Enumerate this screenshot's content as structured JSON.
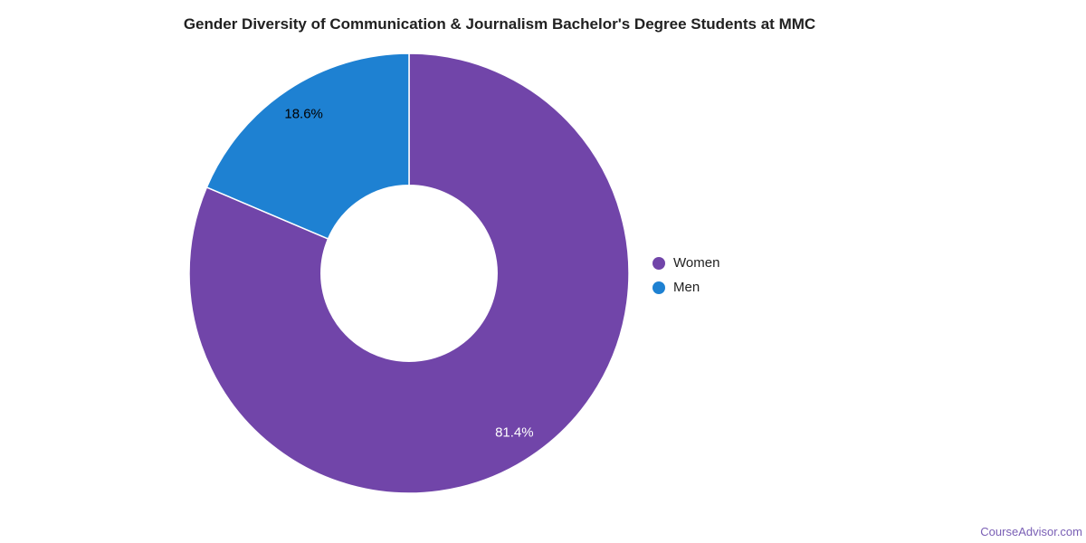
{
  "chart_data": {
    "type": "pie",
    "title": "Gender Diversity of Communication & Journalism Bachelor's Degree Students at MMC",
    "donut_hole": 0.4,
    "categories": [
      "Women",
      "Men"
    ],
    "values": [
      81.4,
      18.6
    ],
    "unit": "percent",
    "slice_labels": [
      "81.4%",
      "18.6%"
    ],
    "colors": [
      "#7145a9",
      "#1e81d2"
    ],
    "slice_label_colors": [
      "#ffffff",
      "#000000"
    ],
    "legend": {
      "position": "right",
      "entries": [
        {
          "label": "Women",
          "color": "#7145a9"
        },
        {
          "label": "Men",
          "color": "#1e81d2"
        }
      ]
    }
  },
  "footer": {
    "link_label": "CourseAdvisor.com",
    "link_color": "#7a5fb5"
  }
}
